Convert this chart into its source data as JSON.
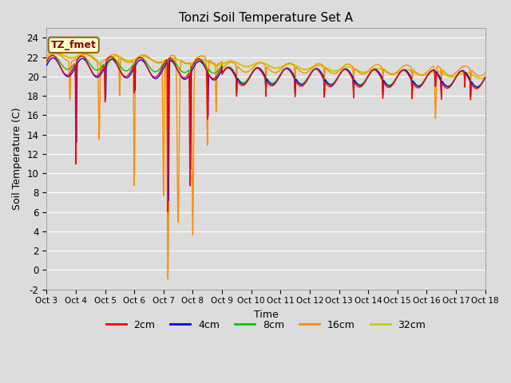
{
  "title": "Tonzi Soil Temperature Set A",
  "xlabel": "Time",
  "ylabel": "Soil Temperature (C)",
  "ylim": [
    -2,
    25
  ],
  "xlim": [
    0,
    15
  ],
  "yticks": [
    -2,
    0,
    2,
    4,
    6,
    8,
    10,
    12,
    14,
    16,
    18,
    20,
    22,
    24
  ],
  "xtick_labels": [
    "Oct 3",
    "Oct 4",
    "Oct 5",
    "Oct 6",
    "Oct 7",
    "Oct 8",
    "Oct 9",
    "Oct 10",
    "Oct 11",
    "Oct 12",
    "Oct 13",
    "Oct 14",
    "Oct 15",
    "Oct 16",
    "Oct 17",
    "Oct 18"
  ],
  "annotation_text": "TZ_fmet",
  "annotation_color": "#8B0000",
  "annotation_bg": "#FFFFCC",
  "fig_bg": "#DCDCDC",
  "plot_bg": "#DCDCDC",
  "legend_entries": [
    "2cm",
    "4cm",
    "8cm",
    "16cm",
    "32cm"
  ],
  "line_colors": [
    "#FF0000",
    "#0000FF",
    "#00CC00",
    "#FF8C00",
    "#CCCC00"
  ],
  "line_widths": [
    1.0,
    1.0,
    1.0,
    1.0,
    1.5
  ]
}
